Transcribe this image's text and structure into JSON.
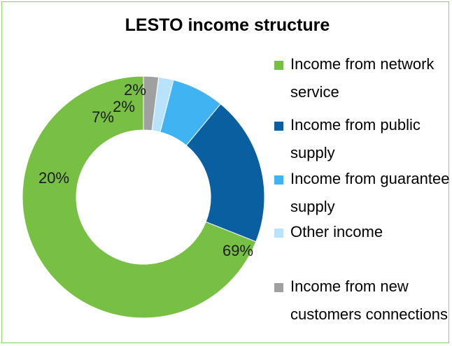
{
  "chart_data": {
    "type": "pie",
    "donut": true,
    "title": "LESTO income structure",
    "legend_position": "right",
    "slices": [
      {
        "name": "Income from network service",
        "value": 69,
        "label": "69%",
        "color": "#77c043"
      },
      {
        "name": "Income from public supply",
        "value": 20,
        "label": "20%",
        "color": "#0a5fa1"
      },
      {
        "name": "Income from guarantee supply",
        "value": 7,
        "label": "7%",
        "color": "#40b4f3"
      },
      {
        "name": "Other income",
        "value": 2,
        "label": "2%",
        "color": "#b9e3fb"
      },
      {
        "name": "Income from new customers connections",
        "value": 2,
        "label": "2%",
        "color": "#a0a0a0"
      }
    ]
  }
}
